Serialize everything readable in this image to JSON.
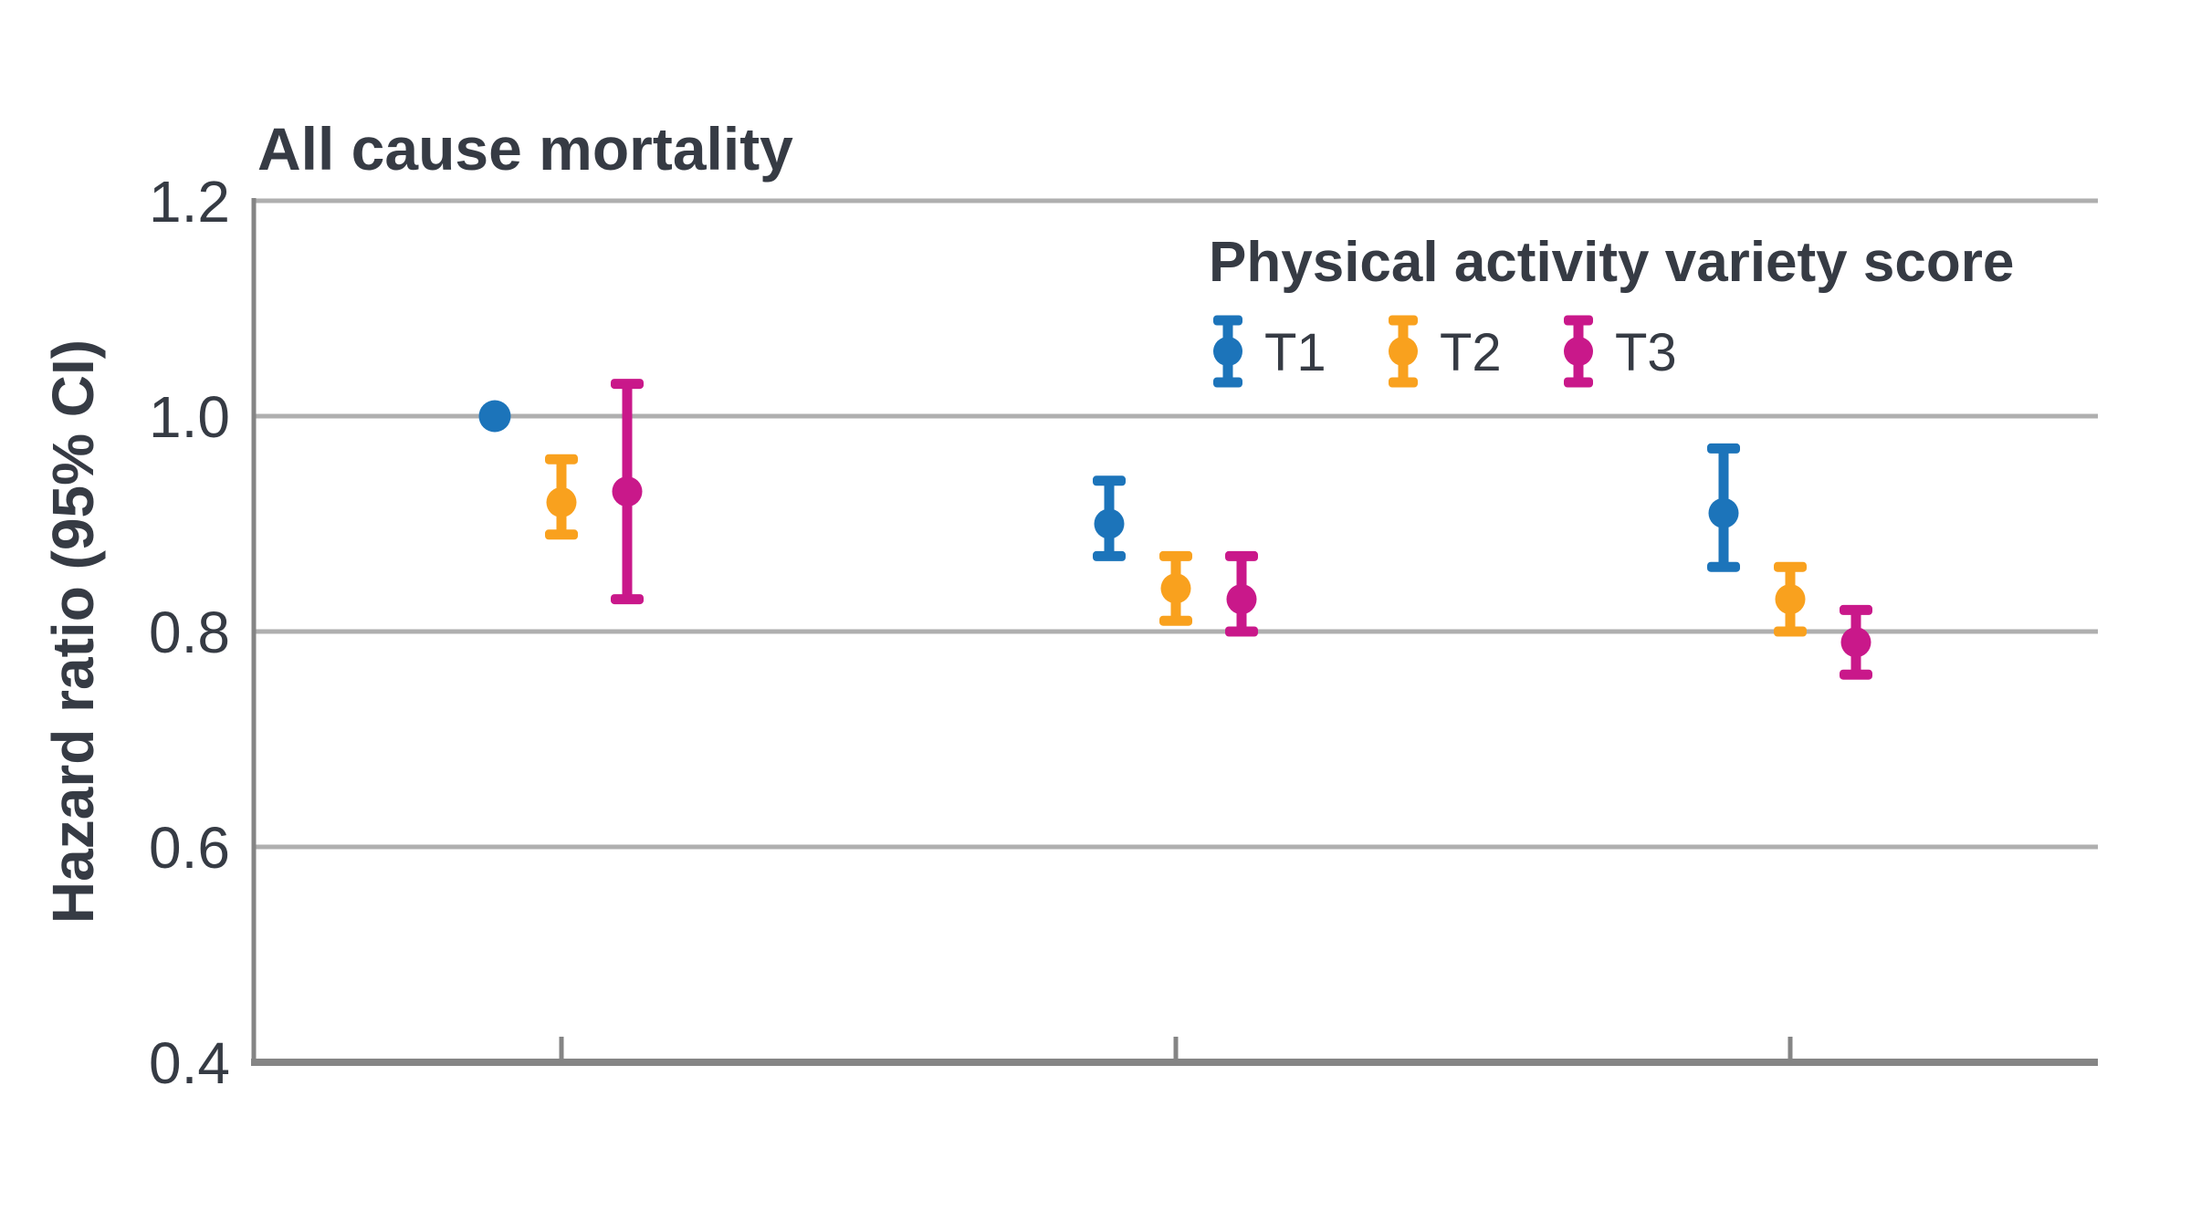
{
  "chart_data": {
    "type": "scatter",
    "subtype": "error-bar-forest-plot",
    "title": "All cause mortality",
    "ylabel": "Hazard ratio (95% CI)",
    "xlabel": "",
    "ylim": [
      0.4,
      1.2
    ],
    "yticks": [
      {
        "value": 1.2,
        "label": "1.2"
      },
      {
        "value": 1.0,
        "label": "1.0"
      },
      {
        "value": 0.8,
        "label": "0.8"
      },
      {
        "value": 0.6,
        "label": "0.6"
      },
      {
        "value": 0.4,
        "label": "0.4"
      }
    ],
    "gridline_values": [
      1.2,
      1.0,
      0.8,
      0.6
    ],
    "x_groups": [
      "",
      "",
      ""
    ],
    "legend": {
      "title": "Physical activity variety score",
      "position": "top-right-inside",
      "items": [
        {
          "label": "T1",
          "color": "#1C74BA"
        },
        {
          "label": "T2",
          "color": "#F9A11E"
        },
        {
          "label": "T3",
          "color": "#C9188A"
        }
      ]
    },
    "series": [
      {
        "name": "T1",
        "color": "#1C74BA",
        "values": [
          {
            "hr": 1.0,
            "ci_low": null,
            "ci_high": null
          },
          {
            "hr": 0.9,
            "ci_low": 0.87,
            "ci_high": 0.94
          },
          {
            "hr": 0.91,
            "ci_low": 0.86,
            "ci_high": 0.97
          }
        ]
      },
      {
        "name": "T2",
        "color": "#F9A11E",
        "values": [
          {
            "hr": 0.92,
            "ci_low": 0.89,
            "ci_high": 0.96
          },
          {
            "hr": 0.84,
            "ci_low": 0.81,
            "ci_high": 0.87
          },
          {
            "hr": 0.83,
            "ci_low": 0.8,
            "ci_high": 0.86
          }
        ]
      },
      {
        "name": "T3",
        "color": "#C9188A",
        "values": [
          {
            "hr": 0.93,
            "ci_low": 0.83,
            "ci_high": 1.03
          },
          {
            "hr": 0.83,
            "ci_low": 0.8,
            "ci_high": 0.87
          },
          {
            "hr": 0.79,
            "ci_low": 0.76,
            "ci_high": 0.82
          }
        ]
      }
    ],
    "colors": {
      "gridline": "#AFAFAF",
      "axis": "#858585",
      "text": "#363B44",
      "background": "#FFFFFF"
    },
    "grid": "horizontal-only",
    "x_tick_labels_visible": false
  }
}
